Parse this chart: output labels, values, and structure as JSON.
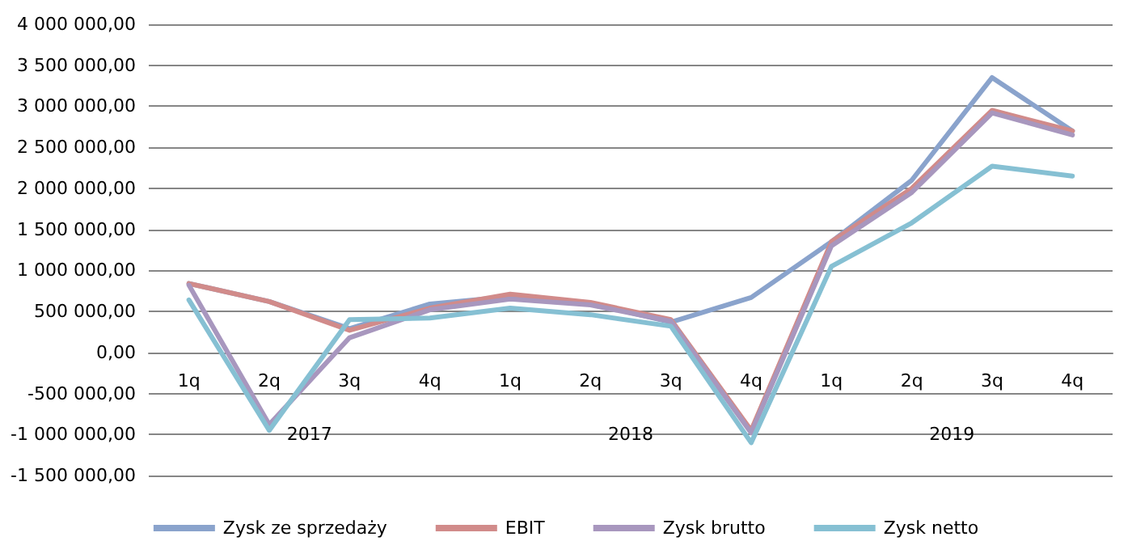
{
  "chart_data": {
    "type": "line",
    "categories": [
      "1q",
      "2q",
      "3q",
      "4q",
      "1q",
      "2q",
      "3q",
      "4q",
      "1q",
      "2q",
      "3q",
      "4q"
    ],
    "annotations": [
      "2017",
      "2018",
      "2019"
    ],
    "series": [
      {
        "name": "Zysk ze sprzedaży",
        "color": "#8aa3cc",
        "values": [
          840000,
          620000,
          290000,
          590000,
          680000,
          600000,
          370000,
          670000,
          1350000,
          2100000,
          3350000,
          2700000
        ]
      },
      {
        "name": "EBIT",
        "color": "#d18b8a",
        "values": [
          840000,
          620000,
          270000,
          540000,
          710000,
          610000,
          400000,
          -950000,
          1350000,
          2000000,
          2950000,
          2700000
        ]
      },
      {
        "name": "Zysk brutto",
        "color": "#a897be",
        "values": [
          820000,
          -880000,
          180000,
          520000,
          650000,
          580000,
          380000,
          -980000,
          1300000,
          1950000,
          2920000,
          2650000
        ]
      },
      {
        "name": "Zysk netto",
        "color": "#86c0d3",
        "values": [
          640000,
          -950000,
          400000,
          420000,
          540000,
          460000,
          320000,
          -1100000,
          1050000,
          1580000,
          2270000,
          2150000
        ]
      }
    ],
    "ylim": [
      -1500000,
      4000000
    ],
    "yticks": [
      {
        "value": -1500000,
        "label": "-1 500 000,00"
      },
      {
        "value": -1000000,
        "label": "-1 000 000,00"
      },
      {
        "value": -500000,
        "label": "-500 000,00"
      },
      {
        "value": 0,
        "label": "0,00"
      },
      {
        "value": 500000,
        "label": "500 000,00"
      },
      {
        "value": 1000000,
        "label": "1 000 000,00"
      },
      {
        "value": 1500000,
        "label": "1 500 000,00"
      },
      {
        "value": 2000000,
        "label": "2 000 000,00"
      },
      {
        "value": 2500000,
        "label": "2 500 000,00"
      },
      {
        "value": 3000000,
        "label": "3 000 000,00"
      },
      {
        "value": 3500000,
        "label": "3 500 000,00"
      },
      {
        "value": 4000000,
        "label": "4 000 000,00"
      }
    ],
    "grid": "y",
    "legend": "bottom",
    "marker": "none",
    "line_style": "solid"
  }
}
